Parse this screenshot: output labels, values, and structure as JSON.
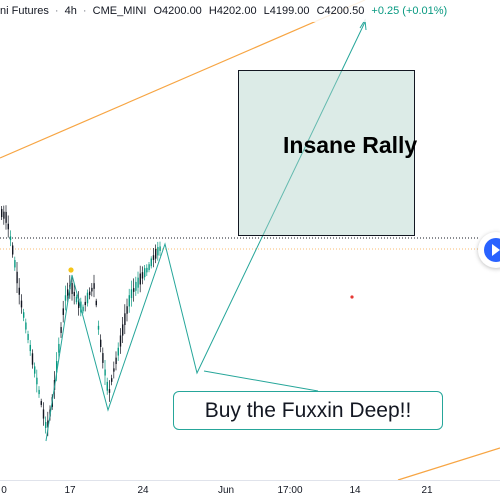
{
  "header": {
    "symbol": "ni Futures",
    "interval": "4h",
    "exchange": "CME_MINI",
    "open": "O4200.00",
    "high": "H4202.00",
    "low": "L4199.00",
    "close": "C4200.50",
    "change": "+0.25 (+0.01%)"
  },
  "annotations": {
    "box_label": "Insane Rally",
    "callout_text": "Buy the Fuxxin Deep!!"
  },
  "colors": {
    "up_candle": "#089981",
    "down_candle": "#131722",
    "trendline": "#f7a543",
    "forecast_line": "#26a69a",
    "price_line": "#131722",
    "accent_button": "#2962ff"
  },
  "axis": {
    "ticks": [
      "0",
      "17",
      "24",
      "Jun",
      "17:00",
      "14",
      "21"
    ]
  },
  "icons": {
    "nav_button": "chevron-right-icon"
  }
}
